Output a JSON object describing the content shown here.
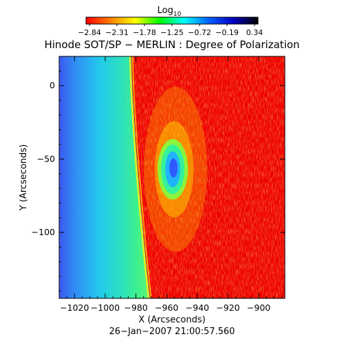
{
  "chart_data": {
    "type": "heatmap",
    "title": "Hinode SOT/SP − MERLIN : Degree of Polarization",
    "xlabel": "X (Arcseconds)",
    "ylabel": "Y (Arcseconds)",
    "date_label": "26−Jan−2007 21:00:57.560",
    "colorbar": {
      "label": "Log",
      "label_subscript": "10",
      "ticks": [
        "−2.84",
        "−2.31",
        "−1.78",
        "−1.25",
        "−0.72",
        "−0.19",
        "0.34"
      ],
      "range": [
        -2.84,
        0.34
      ],
      "colors": [
        "#ff0000",
        "#ff8000",
        "#ffff00",
        "#00ff00",
        "#00ffff",
        "#0060ff",
        "#0000c0",
        "#000000"
      ]
    },
    "xlim": [
      -1030,
      -883
    ],
    "ylim": [
      -145,
      20
    ],
    "x_ticks": [
      -1020,
      -1000,
      -980,
      -960,
      -940,
      -920,
      -900
    ],
    "x_tick_labels": [
      "−1020",
      "−1000",
      "−980",
      "−960",
      "−940",
      "−920",
      "−900"
    ],
    "y_ticks": [
      0,
      -50,
      -100
    ],
    "y_tick_labels": [
      "0",
      "−50",
      "−100"
    ],
    "features": {
      "limb_x_top": -983,
      "limb_x_bottom": -971,
      "sunspot_center": [
        -956,
        -57
      ]
    }
  }
}
